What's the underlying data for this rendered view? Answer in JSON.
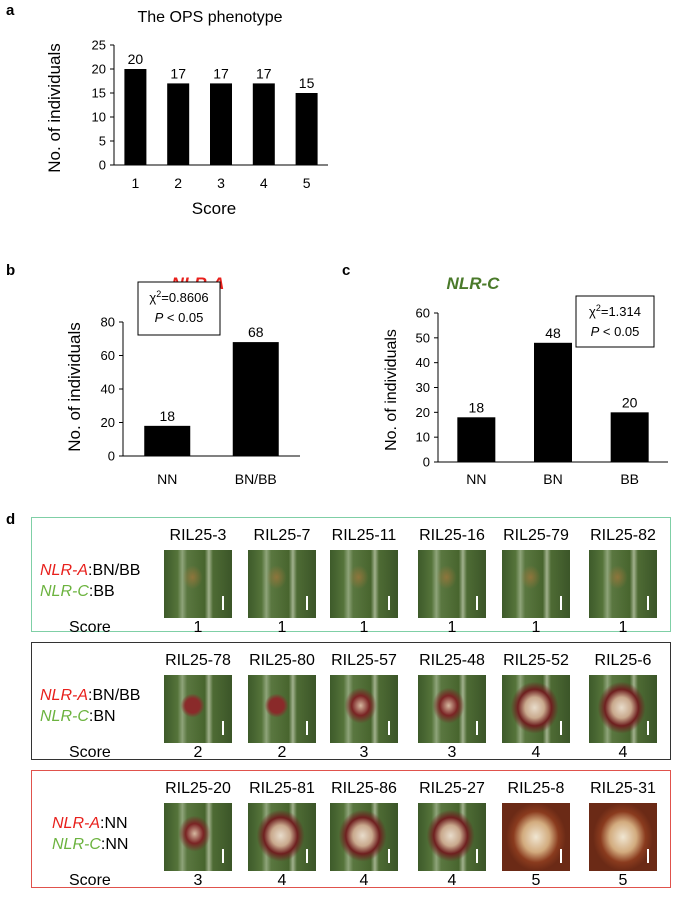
{
  "panel_labels": {
    "a": "a",
    "b": "b",
    "c": "c",
    "d": "d"
  },
  "chart_data": [
    {
      "id": "a",
      "type": "bar",
      "title": "The OPS phenotype",
      "xlabel": "Score",
      "ylabel": "No. of individuals",
      "categories": [
        "1",
        "2",
        "3",
        "4",
        "5"
      ],
      "values": [
        20,
        17,
        17,
        17,
        15
      ],
      "ylim": [
        0,
        25
      ],
      "yticks": [
        0,
        5,
        10,
        15,
        20,
        25
      ],
      "data_labels": [
        "20",
        "17",
        "17",
        "17",
        "15"
      ],
      "title_color": "#000000"
    },
    {
      "id": "b",
      "type": "bar",
      "title": "NLR-A",
      "title_color": "#e8201c",
      "xlabel": "",
      "ylabel": "No. of individuals",
      "categories": [
        "NN",
        "BN/BB"
      ],
      "values": [
        18,
        68
      ],
      "ylim": [
        0,
        80
      ],
      "yticks": [
        0,
        20,
        40,
        60,
        80
      ],
      "data_labels": [
        "18",
        "68"
      ],
      "annotation": {
        "chi": "χ",
        "sup": "2",
        "chi_value": "=0.8606",
        "p_letter": "P",
        "p_text": " < 0.05"
      }
    },
    {
      "id": "c",
      "type": "bar",
      "title": "NLR-C",
      "title_color": "#4a7a2a",
      "xlabel": "",
      "ylabel": "No. of individuals",
      "categories": [
        "NN",
        "BN",
        "BB"
      ],
      "values": [
        18,
        48,
        20
      ],
      "ylim": [
        0,
        60
      ],
      "yticks": [
        0,
        10,
        20,
        30,
        40,
        50,
        60
      ],
      "data_labels": [
        "18",
        "48",
        "20"
      ],
      "annotation": {
        "chi": "χ",
        "sup": "2",
        "chi_value": "=1.314",
        "p_letter": "P",
        "p_text": " < 0.05"
      }
    }
  ],
  "panel_d": {
    "score_word": "Score",
    "rows": [
      {
        "border_color": "#7fcfa6",
        "gene_a_name": "NLR-A",
        "gene_a_geno": ":BN/BB",
        "gene_c_name": "NLR-C",
        "gene_c_geno": ":BB",
        "lines": [
          "RIL25-3",
          "RIL25-7",
          "RIL25-11",
          "RIL25-16",
          "RIL25-79",
          "RIL25-82"
        ],
        "scores": [
          "1",
          "1",
          "1",
          "1",
          "1",
          "1"
        ]
      },
      {
        "border_color": "#333333",
        "gene_a_name": "NLR-A",
        "gene_a_geno": ":BN/BB",
        "gene_c_name": "NLR-C",
        "gene_c_geno": ":BN",
        "lines": [
          "RIL25-78",
          "RIL25-80",
          "RIL25-57",
          "RIL25-48",
          "RIL25-52",
          "RIL25-6"
        ],
        "scores": [
          "2",
          "2",
          "3",
          "3",
          "4",
          "4"
        ]
      },
      {
        "border_color": "#e0524c",
        "gene_a_name": "NLR-A",
        "gene_a_geno": ":NN",
        "gene_c_name": "NLR-C",
        "gene_c_geno": ":NN",
        "lines": [
          "RIL25-20",
          "RIL25-81",
          "RIL25-86",
          "RIL25-27",
          "RIL25-8",
          "RIL25-31"
        ],
        "scores": [
          "3",
          "4",
          "4",
          "4",
          "5",
          "5"
        ]
      }
    ]
  }
}
